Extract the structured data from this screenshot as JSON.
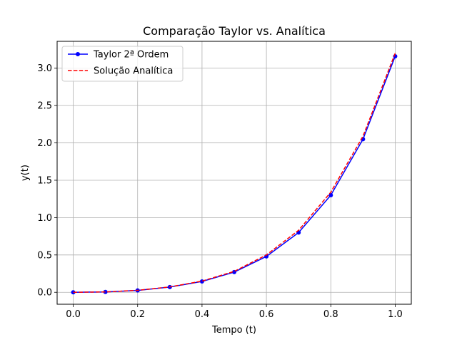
{
  "chart_data": {
    "type": "line",
    "title": "Comparação Taylor vs. Analítica",
    "xlabel": "Tempo (t)",
    "ylabel": "y(t)",
    "xlim": [
      -0.05,
      1.05
    ],
    "ylim": [
      -0.16,
      3.36
    ],
    "xticks": [
      0.0,
      0.2,
      0.4,
      0.6,
      0.8,
      1.0
    ],
    "xtick_labels": [
      "0.0",
      "0.2",
      "0.4",
      "0.6",
      "0.8",
      "1.0"
    ],
    "yticks": [
      0.0,
      0.5,
      1.0,
      1.5,
      2.0,
      2.5,
      3.0
    ],
    "ytick_labels": [
      "0.0",
      "0.5",
      "1.0",
      "1.5",
      "2.0",
      "2.5",
      "3.0"
    ],
    "grid": true,
    "legend_position": "top-left",
    "x": [
      0.0,
      0.1,
      0.2,
      0.3,
      0.4,
      0.5,
      0.6,
      0.7,
      0.8,
      0.9,
      1.0
    ],
    "series": [
      {
        "name": "Taylor 2ª Ordem",
        "color": "#0000ff",
        "style": "solid-with-markers",
        "values": [
          0.0,
          0.005,
          0.025,
          0.07,
          0.145,
          0.27,
          0.48,
          0.8,
          1.3,
          2.05,
          3.16
        ]
      },
      {
        "name": "Solução Analítica",
        "color": "#ff0000",
        "style": "dashed",
        "values": [
          0.0,
          0.005,
          0.026,
          0.072,
          0.15,
          0.28,
          0.5,
          0.83,
          1.34,
          2.09,
          3.2
        ]
      }
    ]
  }
}
